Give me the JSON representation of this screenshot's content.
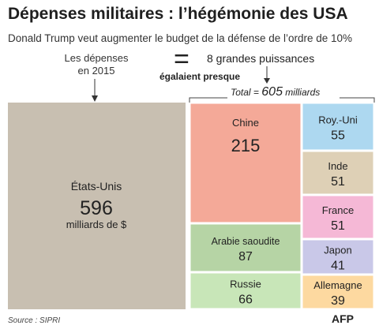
{
  "header": {
    "title": "Dépenses militaires : l’hégémonie des USA",
    "subtitle": "Donald Trump veut augmenter le budget de la défense de l’ordre de 10%"
  },
  "annotations": {
    "left_caption_line1": "Les dépenses",
    "left_caption_line2": "en 2015",
    "equals": "=",
    "right_caption": "8 grandes puissances",
    "equal_note": "égalaient presque",
    "total_prefix": "Total = ",
    "total_value": "605",
    "total_suffix": " milliards"
  },
  "footer": {
    "source": "Source : SIPRI",
    "logo": "AFP"
  },
  "chart_data": {
    "type": "treemap",
    "unit": "milliards de $",
    "main": {
      "name": "États-Unis",
      "value": 596,
      "unit_label": "milliards de $",
      "color": "#c8bfb1"
    },
    "group_total": 605,
    "group": [
      {
        "name": "Chine",
        "value": 215,
        "color": "#f4a998"
      },
      {
        "name": "Arabie saoudite",
        "value": 87,
        "color": "#b6d4a5"
      },
      {
        "name": "Russie",
        "value": 66,
        "color": "#c8e6b8"
      },
      {
        "name": "Roy.-Uni",
        "value": 55,
        "color": "#add8f0"
      },
      {
        "name": "Inde",
        "value": 51,
        "color": "#ded0b6"
      },
      {
        "name": "France",
        "value": 51,
        "color": "#f5b8d6"
      },
      {
        "name": "Japon",
        "value": 41,
        "color": "#c9c8e8"
      },
      {
        "name": "Allemagne",
        "value": 39,
        "color": "#fdd9a0"
      }
    ]
  }
}
